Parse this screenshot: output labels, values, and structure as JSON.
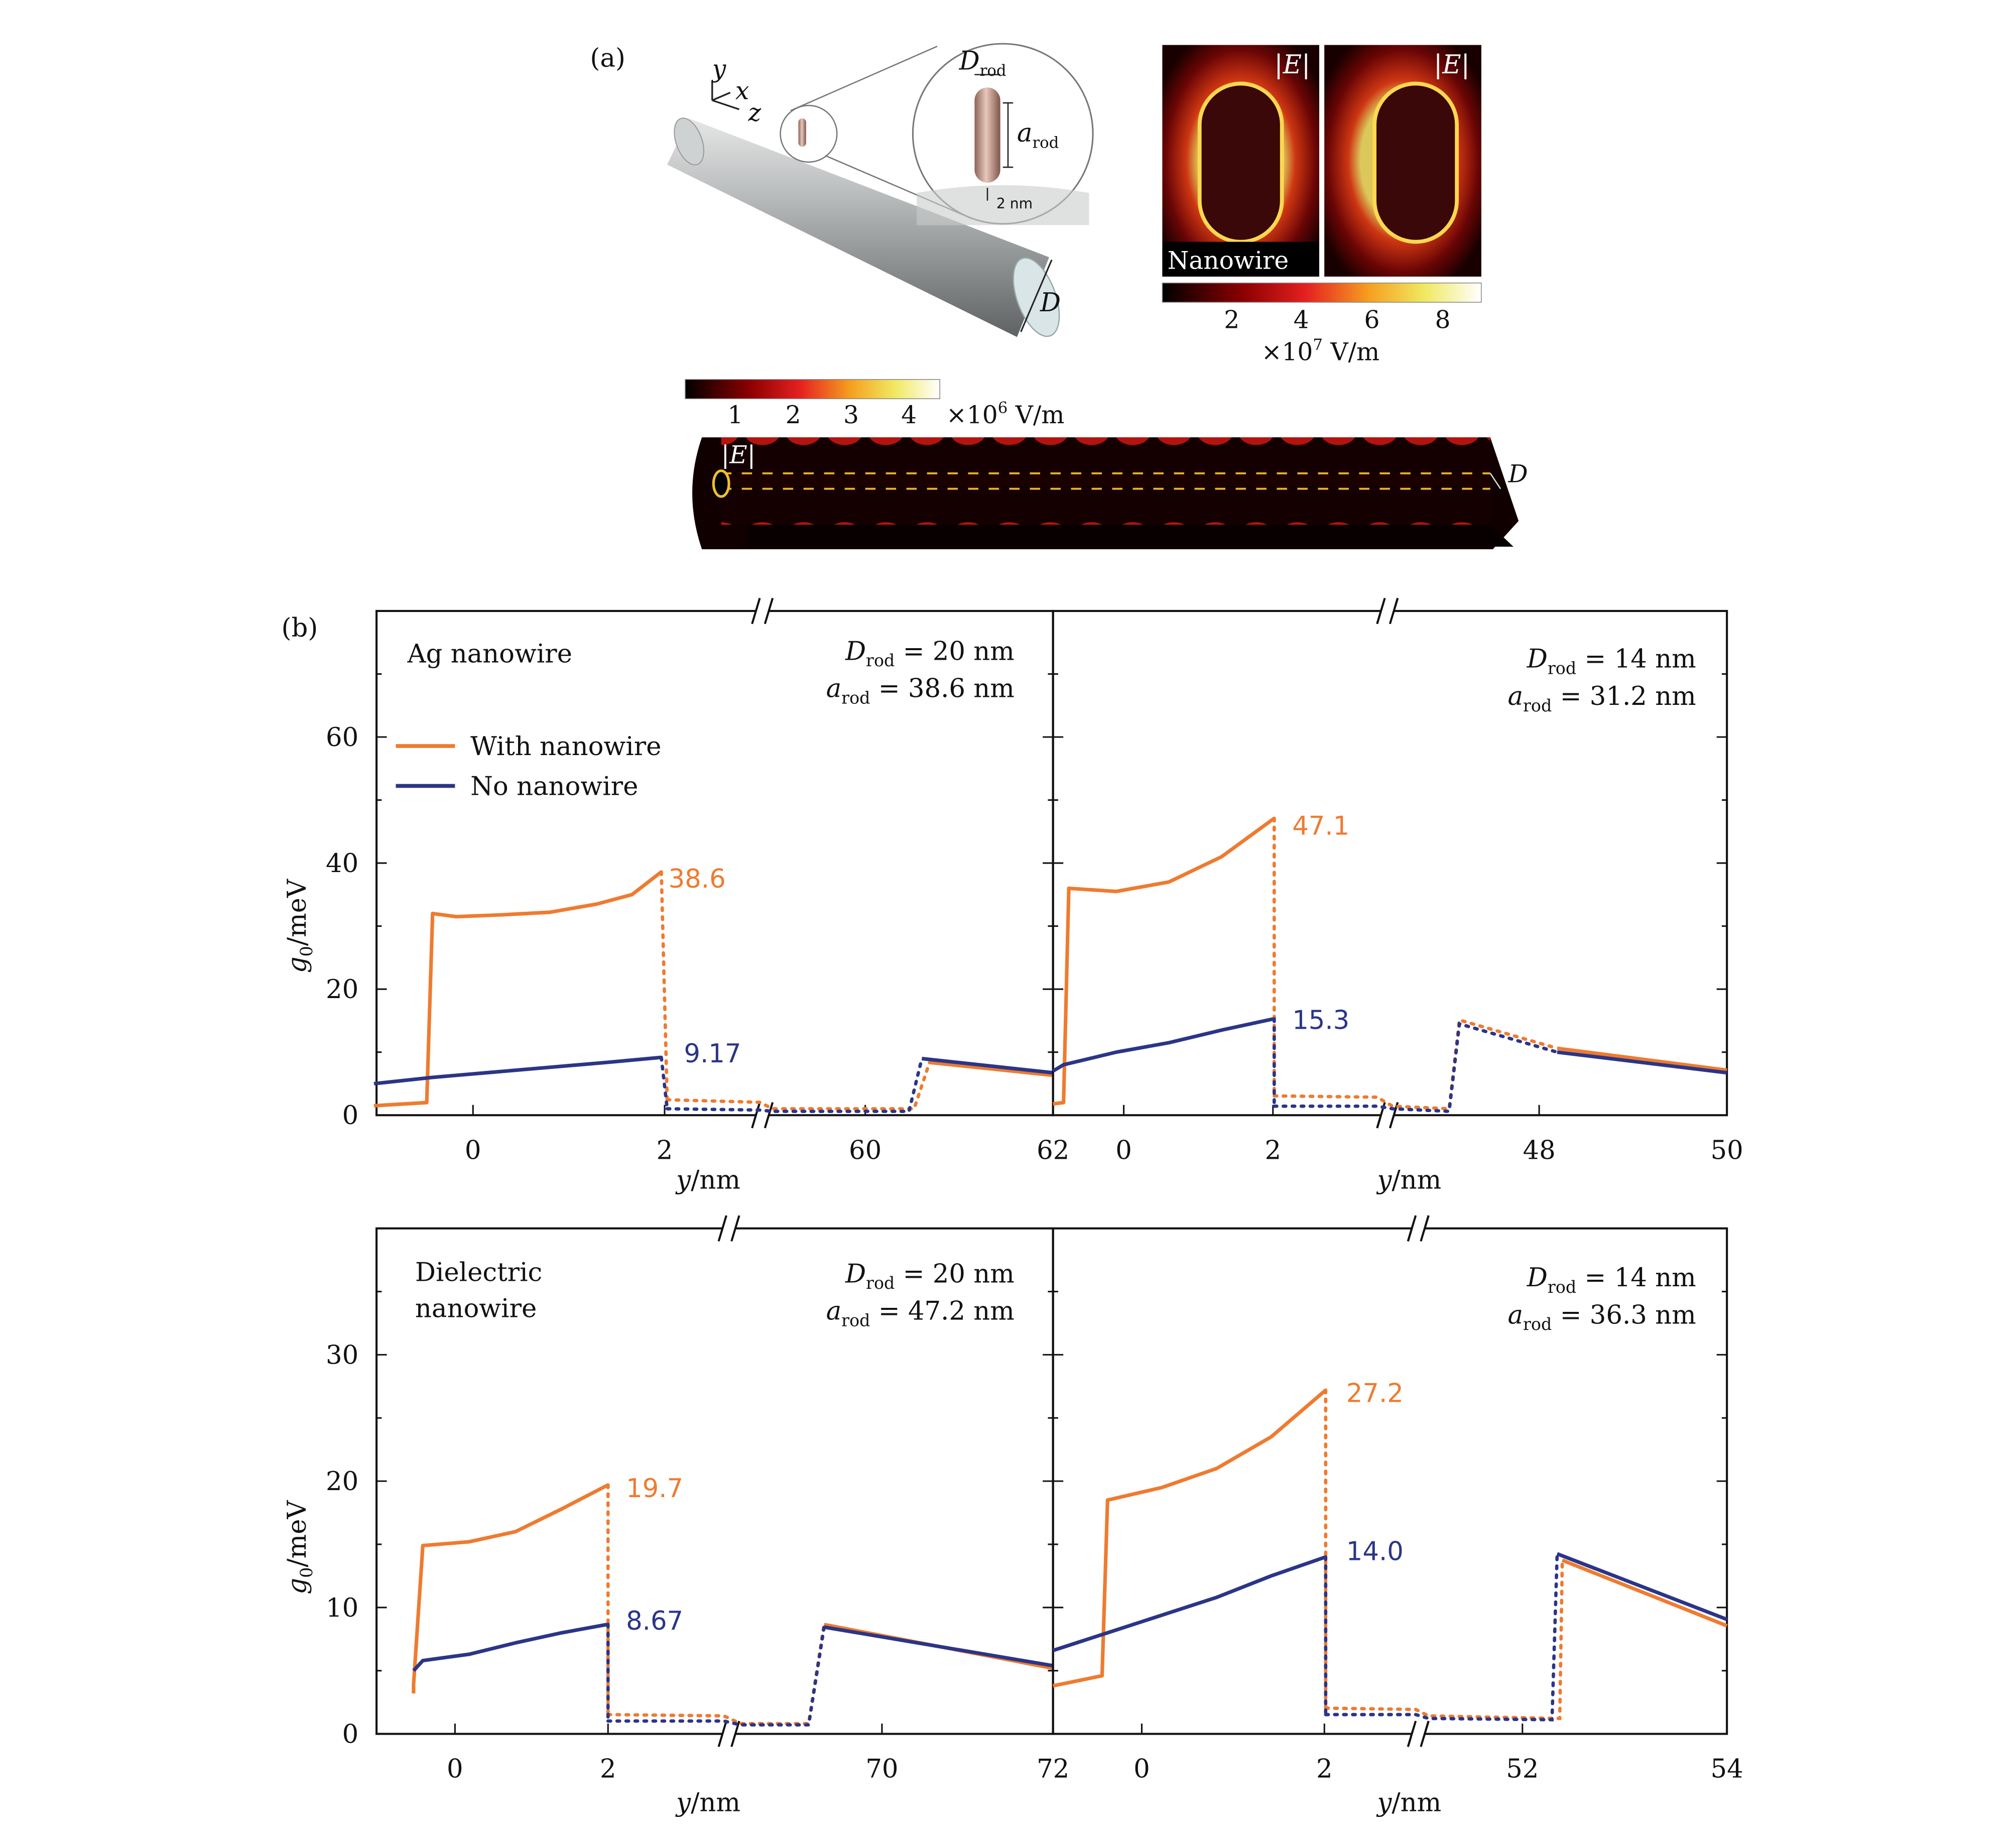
{
  "panel_a": {
    "label": "(a)",
    "axes": {
      "y": "y",
      "x": "x",
      "z": "z"
    },
    "d_rod": "D",
    "d_rod_sub": "rod",
    "a_rod": "a",
    "a_rod_sub": "rod",
    "gap": "2 nm",
    "d_wire": "D",
    "field_label": "|E|",
    "nanowire_tag": "Nanowire",
    "cb1": {
      "ticks": [
        "2",
        "4",
        "6",
        "8"
      ],
      "unit_prefix": "×10",
      "unit_exp": "7",
      "unit_suffix": " V/m"
    },
    "cb2": {
      "ticks": [
        "1",
        "2",
        "3",
        "4"
      ],
      "unit_prefix": "×10",
      "unit_exp": "6",
      "unit_suffix": " V/m"
    },
    "strip_field_label": "|E|",
    "strip_d": "D"
  },
  "panel_b": {
    "label": "(b)",
    "ylabel_g": "g",
    "ylabel_sub": "0",
    "ylabel_unit": "/meV",
    "xlabel_y": "y",
    "xlabel_unit": "/nm",
    "legend": {
      "with": "With nanowire",
      "no": "No nanowire"
    },
    "colors": {
      "with": "#ee7b30",
      "no": "#2b3587"
    }
  },
  "chart_data": [
    {
      "type": "line",
      "title": "Ag nanowire",
      "annotation": [
        "D_rod = 20 nm",
        "a_rod = 38.6 nm"
      ],
      "ylim": [
        0,
        80
      ],
      "yticks": [
        "0",
        "20",
        "40",
        "60"
      ],
      "xticks": [
        "0",
        "2",
        "60",
        "62"
      ],
      "series": [
        {
          "name": "With nanowire",
          "x": [
            -0.5,
            -0.05,
            0.0,
            0.2,
            0.6,
            1.0,
            1.4,
            1.7,
            1.95
          ],
          "y": [
            1.5,
            2.0,
            32.0,
            31.5,
            31.8,
            32.2,
            33.5,
            35.0,
            38.6
          ]
        },
        {
          "name": "No nanowire",
          "x": [
            -0.5,
            0.0,
            0.5,
            1.0,
            1.5,
            1.95
          ],
          "y": [
            5.0,
            6.0,
            6.8,
            7.6,
            8.4,
            9.17
          ]
        }
      ],
      "labels": [
        "38.6",
        "9.17"
      ]
    },
    {
      "type": "line",
      "annotation": [
        "D_rod = 14 nm",
        "a_rod = 31.2 nm"
      ],
      "ylim": [
        0,
        80
      ],
      "xticks": [
        "0",
        "2",
        "48",
        "50"
      ],
      "series": [
        {
          "name": "With nanowire",
          "x": [
            -0.1,
            0.0,
            0.05,
            0.5,
            1.0,
            1.5,
            2.0
          ],
          "y": [
            1.8,
            2.0,
            36.0,
            35.5,
            37.0,
            41.0,
            47.1
          ]
        },
        {
          "name": "No nanowire",
          "x": [
            -0.1,
            0.0,
            0.5,
            1.0,
            1.5,
            2.0
          ],
          "y": [
            7.0,
            8.0,
            10.0,
            11.5,
            13.5,
            15.3
          ]
        }
      ],
      "labels": [
        "47.1",
        "15.3"
      ]
    },
    {
      "type": "line",
      "title": "Dielectric nanowire",
      "annotation": [
        "D_rod = 20 nm",
        "a_rod = 47.2 nm"
      ],
      "ylim": [
        0,
        40
      ],
      "yticks": [
        "0",
        "10",
        "20",
        "30"
      ],
      "xticks": [
        "0",
        "2",
        "70",
        "72"
      ],
      "series": [
        {
          "name": "With nanowire",
          "x": [
            -0.1,
            -0.1,
            0.0,
            0.5,
            1.0,
            1.5,
            2.0
          ],
          "y": [
            3.2,
            3.9,
            14.9,
            15.2,
            16.0,
            17.8,
            19.7
          ]
        },
        {
          "name": "No nanowire",
          "x": [
            -0.1,
            0.0,
            0.5,
            1.0,
            1.5,
            2.0
          ],
          "y": [
            5.0,
            5.8,
            6.3,
            7.2,
            8.0,
            8.67
          ]
        }
      ],
      "labels": [
        "19.7",
        "8.67"
      ]
    },
    {
      "type": "line",
      "annotation": [
        "D_rod = 14 nm",
        "a_rod = 36.3 nm"
      ],
      "ylim": [
        0,
        40
      ],
      "xticks": [
        "0",
        "2",
        "52",
        "54"
      ],
      "series": [
        {
          "name": "With nanowire",
          "x": [
            -0.5,
            -0.05,
            0.0,
            0.5,
            1.0,
            1.5,
            2.0
          ],
          "y": [
            3.8,
            4.6,
            18.5,
            19.5,
            21.0,
            23.5,
            27.2
          ]
        },
        {
          "name": "No nanowire",
          "x": [
            -0.5,
            0.0,
            0.5,
            1.0,
            1.5,
            2.0
          ],
          "y": [
            6.6,
            8.0,
            9.4,
            10.8,
            12.5,
            14.0
          ]
        }
      ],
      "labels": [
        "27.2",
        "14.0"
      ]
    }
  ]
}
